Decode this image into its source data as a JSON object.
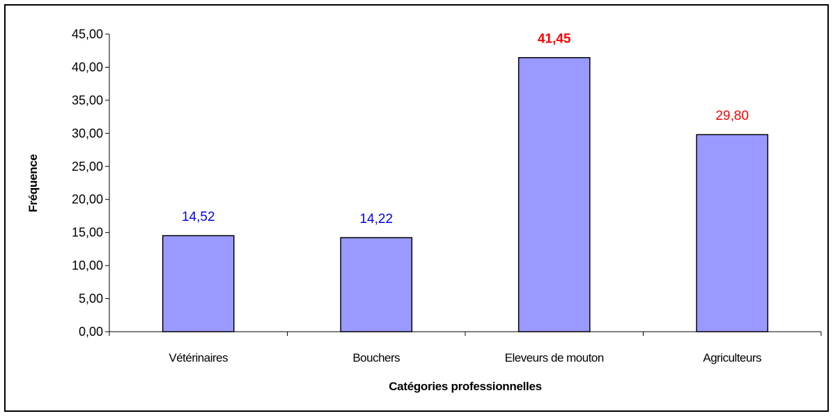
{
  "chart_data": {
    "type": "bar",
    "title": "",
    "xlabel": "Catégories professionnelles",
    "ylabel": "Fréquence",
    "ylim": [
      0,
      45
    ],
    "ytick_step": 5,
    "ytick_labels": [
      "0,00",
      "5,00",
      "10,00",
      "15,00",
      "20,00",
      "25,00",
      "30,00",
      "35,00",
      "40,00",
      "45,00"
    ],
    "grid": false,
    "legend": "none",
    "categories": [
      "Vétérinaires",
      "Bouchers",
      "Eleveurs  de mouton",
      "Agriculteurs"
    ],
    "values": [
      14.52,
      14.22,
      41.45,
      29.8
    ],
    "data_labels": [
      "14,52",
      "14,22",
      "41,45",
      "29,80"
    ],
    "data_label_colors": [
      "#0000ff",
      "#0000ff",
      "#ff0000",
      "#ff0000"
    ],
    "data_label_bold": [
      false,
      false,
      true,
      false
    ],
    "bar_color": "#9999ff",
    "bar_border_color": "#000000"
  }
}
